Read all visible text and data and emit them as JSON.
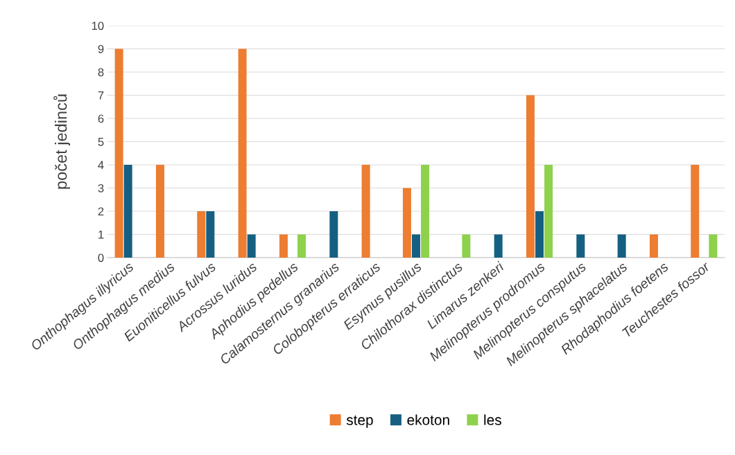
{
  "chart_data": {
    "type": "bar",
    "ylabel": "počet jedinců",
    "categories": [
      "Onthophagus illyricus",
      "Onthophagus medius",
      "Euoniticellus fulvus",
      "Acrossus luridus",
      "Aphodius pedellus",
      "Calamosternus granarius",
      "Colobopterus erraticus",
      "Esymus pusillus",
      "Chilothorax distinctus",
      "Limarus zenkeri",
      "Melinopterus prodromus",
      "Melinopterus consputus",
      "Melinopterus sphacelatus",
      "Rhodaphodius foetens",
      "Teuchestes fossor"
    ],
    "series": [
      {
        "name": "step",
        "color": "#ed7d31",
        "values": [
          9,
          4,
          2,
          9,
          1,
          null,
          4,
          3,
          null,
          null,
          7,
          null,
          null,
          1,
          4
        ]
      },
      {
        "name": "ekoton",
        "color": "#156082",
        "values": [
          4,
          null,
          2,
          1,
          null,
          2,
          null,
          1,
          null,
          1,
          2,
          1,
          1,
          null,
          null
        ]
      },
      {
        "name": "les",
        "color": "#8ed14c",
        "values": [
          null,
          null,
          null,
          null,
          1,
          null,
          null,
          4,
          1,
          null,
          4,
          null,
          null,
          null,
          1
        ]
      }
    ],
    "ylim": [
      0,
      10
    ],
    "yticks": [
      0,
      1,
      2,
      3,
      4,
      5,
      6,
      7,
      8,
      9,
      10
    ],
    "grid": "y",
    "legend": "bottom"
  }
}
